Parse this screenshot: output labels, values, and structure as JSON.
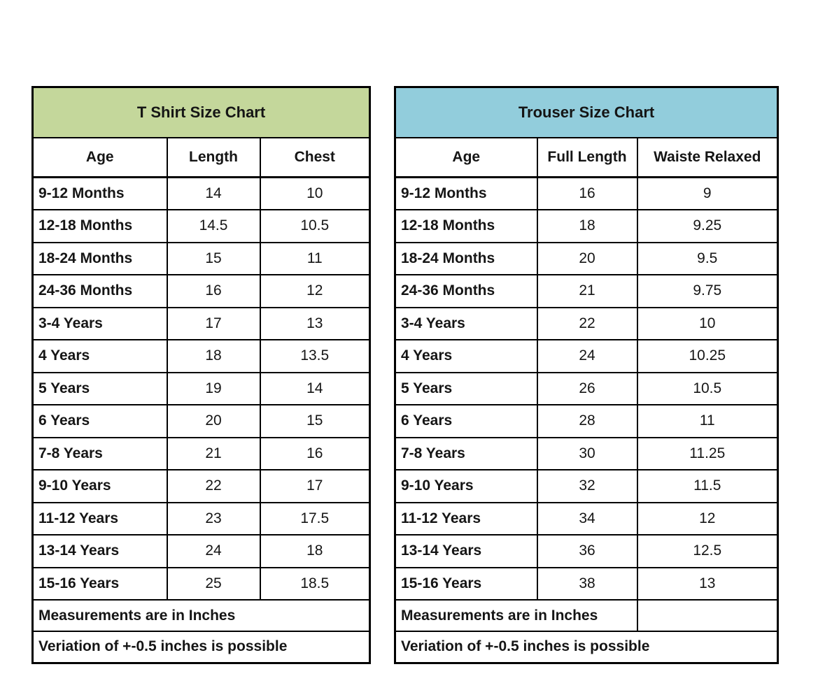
{
  "colors": {
    "border": "#000000",
    "text": "#151515",
    "tshirt_title_bg": "#c4d79b",
    "trouser_title_bg": "#92cddc",
    "page_bg": "#ffffff"
  },
  "tshirt_table": {
    "title": "T Shirt Size Chart",
    "title_bg": "#c4d79b",
    "columns": [
      "Age",
      "Length",
      "Chest"
    ],
    "rows": [
      [
        "9-12 Months",
        "14",
        "10"
      ],
      [
        "12-18 Months",
        "14.5",
        "10.5"
      ],
      [
        "18-24 Months",
        "15",
        "11"
      ],
      [
        "24-36 Months",
        "16",
        "12"
      ],
      [
        "3-4 Years",
        "17",
        "13"
      ],
      [
        "4 Years",
        "18",
        "13.5"
      ],
      [
        "5 Years",
        "19",
        "14"
      ],
      [
        "6 Years",
        "20",
        "15"
      ],
      [
        "7-8 Years",
        "21",
        "16"
      ],
      [
        "9-10 Years",
        "22",
        "17"
      ],
      [
        "11-12 Years",
        "23",
        "17.5"
      ],
      [
        "13-14 Years",
        "24",
        "18"
      ],
      [
        "15-16 Years",
        "25",
        "18.5"
      ]
    ],
    "footers": [
      "Measurements are in Inches",
      "Veriation of +-0.5 inches is possible"
    ]
  },
  "trouser_table": {
    "title": "Trouser Size Chart",
    "title_bg": "#92cddc",
    "columns": [
      "Age",
      "Full Length",
      "Waiste Relaxed"
    ],
    "rows": [
      [
        "9-12 Months",
        "16",
        "9"
      ],
      [
        "12-18 Months",
        "18",
        "9.25"
      ],
      [
        "18-24 Months",
        "20",
        "9.5"
      ],
      [
        "24-36 Months",
        "21",
        "9.75"
      ],
      [
        "3-4 Years",
        "22",
        "10"
      ],
      [
        "4 Years",
        "24",
        "10.25"
      ],
      [
        "5 Years",
        "26",
        "10.5"
      ],
      [
        "6 Years",
        "28",
        "11"
      ],
      [
        "7-8 Years",
        "30",
        "11.25"
      ],
      [
        "9-10 Years",
        "32",
        "11.5"
      ],
      [
        "11-12 Years",
        "34",
        "12"
      ],
      [
        "13-14 Years",
        "36",
        "12.5"
      ],
      [
        "15-16 Years",
        "38",
        "13"
      ]
    ],
    "footers": [
      "Measurements are in Inches",
      "Veriation of +-0.5 inches is possible"
    ]
  }
}
